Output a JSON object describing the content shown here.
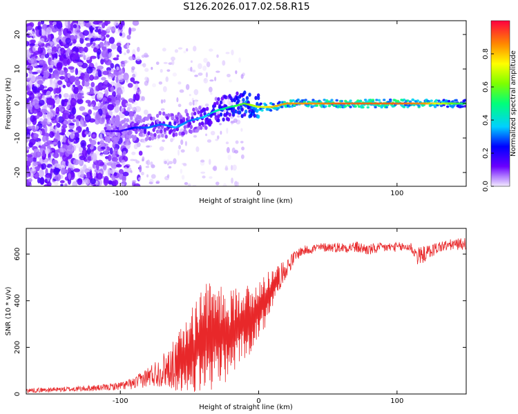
{
  "figure": {
    "title": "S126.2026.017.02.58.R15"
  },
  "chart_data": [
    {
      "type": "heatmap",
      "name": "spectrogram",
      "xlabel": "Height of straight line (km)",
      "ylabel": "Frequency (Hz)",
      "xlim": [
        -168,
        150
      ],
      "ylim": [
        -24,
        24
      ],
      "xticks": [
        -100,
        0,
        100
      ],
      "yticks": [
        -20,
        -10,
        0,
        10,
        20
      ],
      "colorbar": {
        "label": "Normalized spectral amplitude",
        "range": [
          0,
          1
        ],
        "ticks": [
          0.0,
          0.2,
          0.4,
          0.6,
          0.8
        ]
      },
      "signal_track": {
        "description_points_x": [
          -100,
          -90,
          -80,
          -70,
          -60,
          -50,
          -40,
          -30,
          -20,
          -10,
          0,
          10,
          20,
          40,
          60,
          80,
          100,
          120,
          140,
          150
        ],
        "frequency_hz": [
          -8,
          -7,
          -7,
          -6,
          -7,
          -5,
          -4,
          -2,
          -1,
          0,
          -1,
          -1,
          0,
          0,
          0,
          0,
          0,
          0,
          0,
          0
        ],
        "peak_amplitude": [
          0.15,
          0.25,
          0.3,
          0.3,
          0.35,
          0.3,
          0.35,
          0.45,
          0.5,
          0.6,
          0.7,
          0.8,
          0.85,
          0.85,
          0.9,
          0.9,
          0.9,
          0.85,
          0.6,
          0.5
        ]
      }
    },
    {
      "type": "line",
      "name": "snr",
      "xlabel": "Height of straight line (km)",
      "ylabel": "SNR (10 * v/v)",
      "xlim": [
        -168,
        150
      ],
      "ylim": [
        0,
        710
      ],
      "xticks": [
        -100,
        0,
        100
      ],
      "yticks": [
        0,
        200,
        400,
        600
      ],
      "series": [
        {
          "name": "SNR",
          "color": "#e8282a",
          "x": [
            -168,
            -150,
            -130,
            -110,
            -100,
            -90,
            -80,
            -70,
            -60,
            -50,
            -40,
            -30,
            -20,
            -15,
            -10,
            -5,
            0,
            5,
            10,
            15,
            20,
            25,
            30,
            40,
            50,
            60,
            70,
            80,
            90,
            100,
            110,
            115,
            120,
            130,
            140,
            150
          ],
          "y": [
            15,
            18,
            22,
            28,
            35,
            45,
            75,
            100,
            130,
            170,
            230,
            260,
            250,
            300,
            320,
            310,
            360,
            410,
            450,
            500,
            540,
            580,
            610,
            625,
            630,
            628,
            630,
            618,
            628,
            630,
            630,
            590,
            600,
            630,
            640,
            645
          ],
          "noise_amplitude": [
            10,
            10,
            12,
            14,
            18,
            25,
            45,
            70,
            110,
            160,
            220,
            200,
            180,
            160,
            150,
            130,
            120,
            110,
            80,
            55,
            40,
            30,
            22,
            20,
            20,
            22,
            25,
            25,
            22,
            20,
            22,
            40,
            35,
            25,
            25,
            25
          ]
        }
      ]
    }
  ]
}
